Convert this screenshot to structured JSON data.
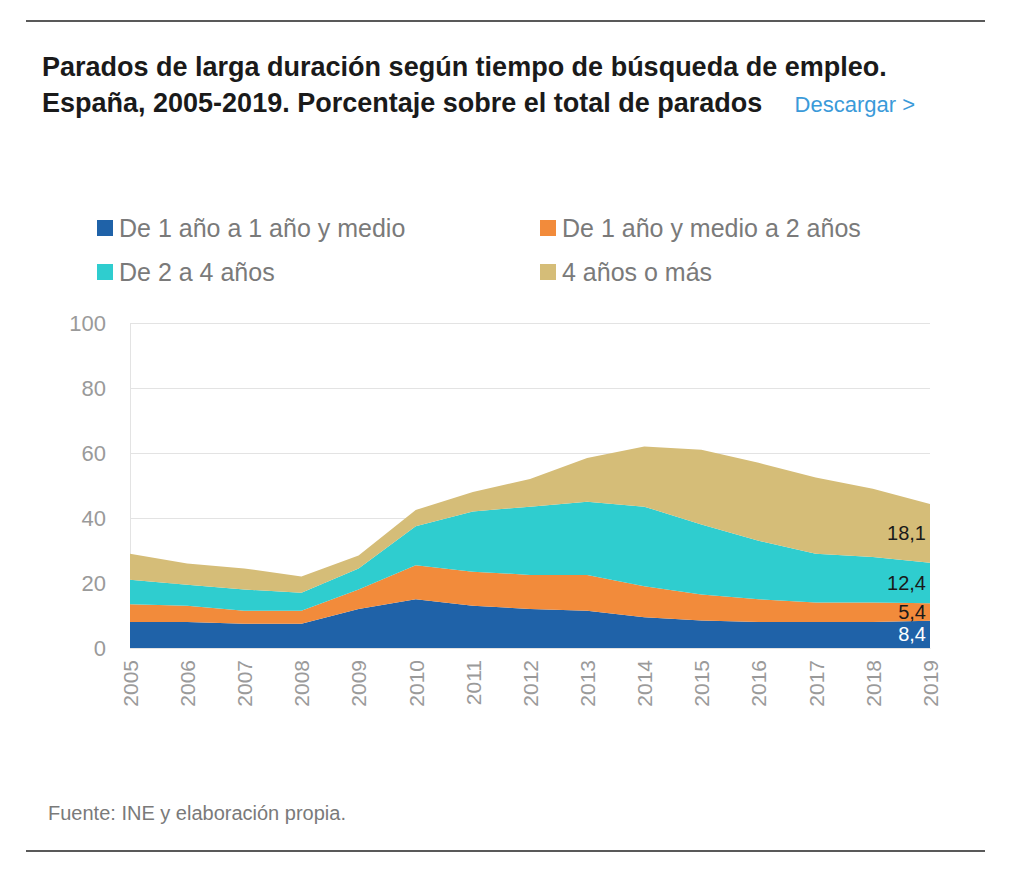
{
  "chart_data": {
    "type": "area",
    "title": "Parados de larga duración según tiempo de búsqueda de empleo. España, 2005-2019. Porcentaje sobre el total de parados",
    "download_label": "Descargar >",
    "source": "Fuente: INE y elaboración propia.",
    "stacked": true,
    "grid": true,
    "data_labels": true,
    "x": [
      2005,
      2006,
      2007,
      2008,
      2009,
      2010,
      2011,
      2012,
      2013,
      2014,
      2015,
      2016,
      2017,
      2018,
      2019
    ],
    "xlim": [
      2005,
      2019
    ],
    "xticks": [
      2005,
      2006,
      2007,
      2008,
      2009,
      2010,
      2011,
      2012,
      2013,
      2014,
      2015,
      2016,
      2017,
      2018,
      2019
    ],
    "ylim": [
      0,
      100
    ],
    "yticks": [
      0,
      20,
      40,
      60,
      80,
      100
    ],
    "series": [
      {
        "name": "De 1 año a 1 año y medio",
        "color": "#1f62a8",
        "values": [
          8,
          8,
          7.5,
          7.5,
          12,
          15,
          13,
          12,
          11.5,
          9.5,
          8.5,
          8,
          8,
          8,
          8.4
        ],
        "value_labels": [
          null,
          null,
          null,
          null,
          null,
          null,
          null,
          null,
          null,
          null,
          null,
          null,
          null,
          null,
          "8,4"
        ]
      },
      {
        "name": "De 1 año y medio a 2 años",
        "color": "#f28b3b",
        "values": [
          5.5,
          5,
          4,
          4,
          6,
          10.5,
          10.5,
          10.5,
          11,
          9.5,
          8,
          7,
          6,
          6,
          5.4
        ],
        "value_labels": [
          null,
          null,
          null,
          null,
          null,
          null,
          null,
          null,
          null,
          null,
          null,
          null,
          null,
          null,
          "5,4"
        ]
      },
      {
        "name": "De 2 a 4 años",
        "color": "#2fcdcf",
        "values": [
          7.5,
          6.5,
          6.5,
          5.5,
          6.5,
          12,
          18.5,
          21,
          22.5,
          24.5,
          21.5,
          18,
          15,
          14,
          12.4
        ],
        "value_labels": [
          null,
          null,
          null,
          null,
          null,
          null,
          null,
          null,
          null,
          null,
          null,
          null,
          null,
          null,
          "12,4"
        ]
      },
      {
        "name": "4 años o más",
        "color": "#d5bd78",
        "values": [
          8,
          6.5,
          6.5,
          5,
          4,
          5,
          6,
          8.5,
          13.5,
          18.5,
          23,
          24,
          23.5,
          21,
          18.1
        ],
        "value_labels": [
          null,
          null,
          null,
          null,
          null,
          null,
          null,
          null,
          null,
          null,
          null,
          null,
          null,
          null,
          "18,1"
        ]
      }
    ]
  }
}
